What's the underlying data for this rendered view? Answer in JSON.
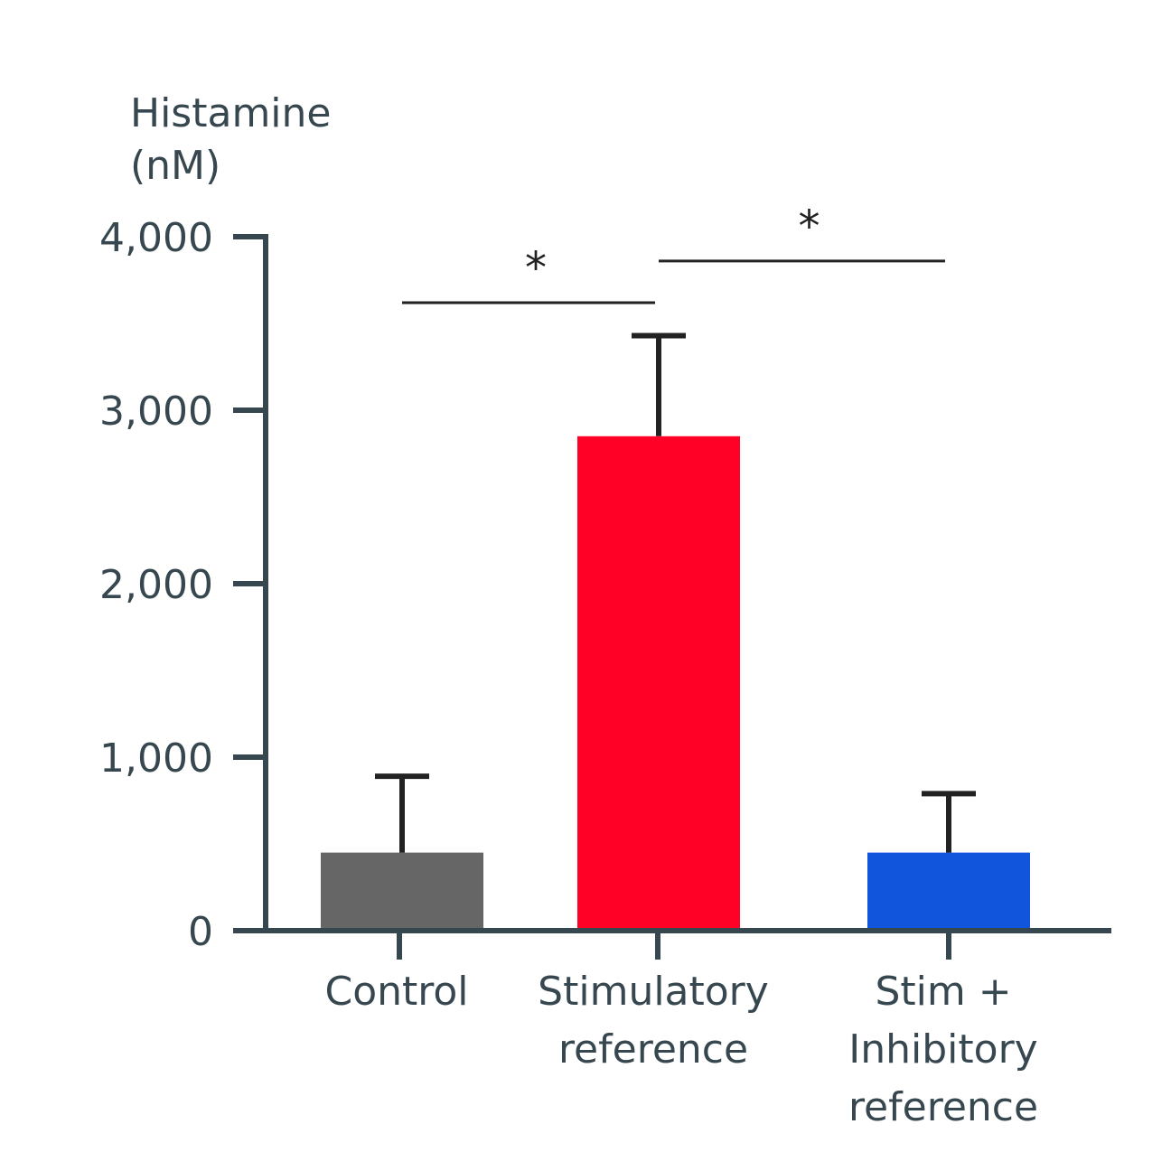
{
  "chart_data": {
    "type": "bar",
    "title": "",
    "ylabel": [
      "Histamine",
      "(nM)"
    ],
    "xlabel": "",
    "categories": [
      [
        "Control"
      ],
      [
        "Stimulatory",
        "reference"
      ],
      [
        "Stim +",
        "Inhibitory",
        "reference"
      ]
    ],
    "values": [
      450,
      2850,
      450
    ],
    "errors": [
      440,
      580,
      340
    ],
    "colors": [
      "#666666",
      "#ff0027",
      "#1155dd"
    ],
    "ylim": [
      0,
      4000
    ],
    "yticks": [
      {
        "value": 0,
        "label": "0"
      },
      {
        "value": 1000,
        "label": "1,000"
      },
      {
        "value": 2000,
        "label": "2,000"
      },
      {
        "value": 3000,
        "label": "3,000"
      },
      {
        "value": 4000,
        "label": "4,000"
      }
    ],
    "grid": false,
    "significance": [
      {
        "from": 0,
        "to": 1,
        "label": "*",
        "level": 3620
      },
      {
        "from": 1,
        "to": 2,
        "label": "*",
        "level": 3860
      }
    ]
  }
}
